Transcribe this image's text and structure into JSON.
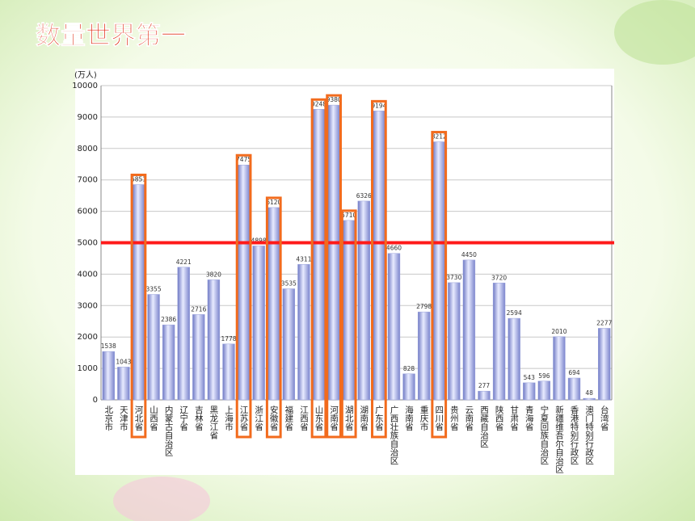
{
  "title": "数量世界第一",
  "chart_data": {
    "type": "bar",
    "y_label": "(万人)",
    "categories": [
      "北京市",
      "天津市",
      "河北省",
      "山西省",
      "内蒙古自治区",
      "辽宁省",
      "吉林省",
      "黑龙江省",
      "上海市",
      "江苏省",
      "浙江省",
      "安徽省",
      "福建省",
      "江西省",
      "山东省",
      "河南省",
      "湖北省",
      "湖南省",
      "广东省",
      "广西壮族自治区",
      "海南省",
      "重庆市",
      "四川省",
      "贵州省",
      "云南省",
      "西藏自治区",
      "陕西省",
      "甘肃省",
      "青海省",
      "宁夏回族自治区",
      "新疆维吾尔自治区",
      "香港特别行政区",
      "澳门特别行政区",
      "台湾省"
    ],
    "values": [
      1538,
      1043,
      6851,
      3355,
      2386,
      4221,
      2716,
      3820,
      1778,
      7475,
      4898,
      6120,
      3535,
      4311,
      9248,
      9380,
      5710,
      6326,
      9194,
      4660,
      828,
      2798,
      8212,
      3730,
      4450,
      277,
      3720,
      2594,
      543,
      596,
      2010,
      694,
      48,
      2277
    ],
    "color": "#9aa3dc",
    "ylim": [
      0,
      10000
    ],
    "yticks": [
      0,
      1000,
      2000,
      3000,
      4000,
      5000,
      6000,
      7000,
      8000,
      9000,
      10000
    ],
    "grid": true,
    "reference_line": {
      "value": 5000,
      "color": "#ff1a1a"
    },
    "highlighted": [
      2,
      9,
      11,
      14,
      15,
      16,
      18,
      22
    ],
    "highlight_color": "#f26b1d"
  }
}
